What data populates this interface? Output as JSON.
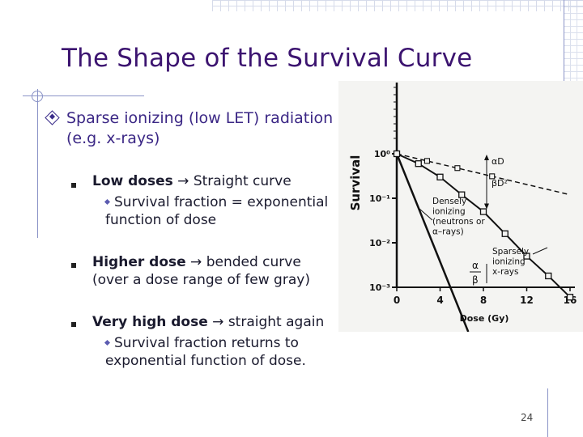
{
  "slide": {
    "title": "The Shape of the Survival Curve",
    "main_bullet": "Sparse ionizing (low LET) radiation (e.g. x-rays)",
    "items": [
      {
        "bold": "Low doses",
        "rest": " → Straight curve",
        "sub": "Survival fraction = exponential function of dose"
      },
      {
        "bold": "Higher dose",
        "rest": " → bended curve (over a dose range of few gray)"
      },
      {
        "bold": "Very high dose",
        "rest": " → straight again",
        "sub": "Survival fraction returns to exponential function of dose."
      }
    ],
    "page_number": "24"
  },
  "chart_data": {
    "type": "line",
    "title": "",
    "xlabel": "Dose (Gy)",
    "ylabel": "Survival",
    "xlim": [
      0,
      16
    ],
    "ylog": true,
    "x_ticks": [
      "0",
      "4",
      "8",
      "12",
      "16"
    ],
    "y_ticks": [
      "10⁰",
      "10⁻¹",
      "10⁻²",
      "10⁻³"
    ],
    "series": [
      {
        "name": "Densely ionizing (neutrons or α–rays)",
        "x": [
          0,
          3.3,
          6.6
        ],
        "y": [
          1,
          0.01,
          0.0001
        ]
      },
      {
        "name": "Sparsely ionizing x-rays",
        "x": [
          0,
          2,
          4,
          6,
          8,
          10,
          12,
          14,
          16
        ],
        "y": [
          1,
          0.6,
          0.3,
          0.12,
          0.05,
          0.016,
          0.005,
          0.0018,
          0.0006
        ]
      },
      {
        "name": "",
        "x": [
          0,
          16
        ],
        "y": [
          1,
          0.12
        ],
        "style": "dashed"
      }
    ],
    "annotations": [
      "αD",
      "βD²",
      "Densely ionizing (neutrons or α–rays)",
      "Sparsely ionizing x-rays",
      "α/β"
    ]
  }
}
